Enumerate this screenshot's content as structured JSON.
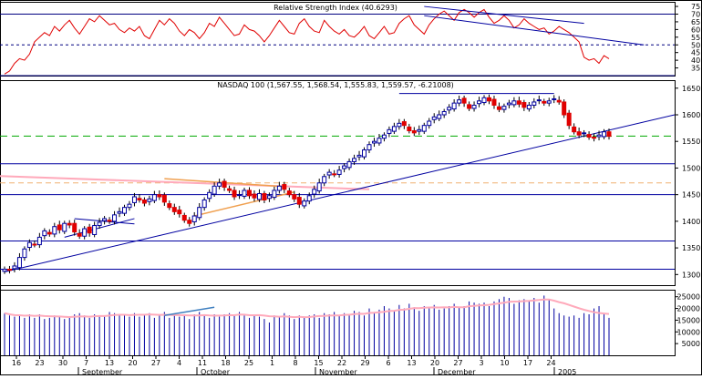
{
  "chart_data": [
    {
      "type": "line",
      "title": "Relative Strength Index (40.6293)",
      "y_ticks": [
        75,
        70,
        65,
        60,
        55,
        50,
        45,
        40,
        35
      ],
      "ylim": [
        30,
        78
      ],
      "reference_lines": [
        70,
        50,
        30
      ],
      "values": [
        31,
        33,
        38,
        41,
        40,
        44,
        52,
        55,
        58,
        56,
        62,
        59,
        63,
        66,
        61,
        57,
        62,
        67,
        65,
        69,
        66,
        63,
        64,
        60,
        58,
        61,
        59,
        62,
        56,
        54,
        60,
        66,
        63,
        67,
        64,
        59,
        56,
        60,
        58,
        54,
        58,
        64,
        62,
        68,
        64,
        60,
        56,
        57,
        63,
        60,
        59,
        56,
        52,
        56,
        61,
        66,
        62,
        58,
        57,
        64,
        67,
        62,
        59,
        58,
        66,
        62,
        59,
        57,
        60,
        56,
        55,
        58,
        62,
        56,
        54,
        58,
        62,
        57,
        58,
        64,
        67,
        69,
        63,
        60,
        57,
        63,
        67,
        70,
        72,
        69,
        66,
        71,
        73,
        71,
        68,
        71,
        73,
        68,
        64,
        66,
        69,
        66,
        61,
        63,
        67,
        64,
        62,
        60,
        61,
        57,
        59,
        62,
        60,
        58,
        55,
        52,
        42,
        40,
        41,
        38,
        43,
        41
      ],
      "trendlines": [
        {
          "x1": 84,
          "y1": 75,
          "x2": 116,
          "y2": 64
        },
        {
          "x1": 84,
          "y1": 69,
          "x2": 128,
          "y2": 50
        }
      ]
    },
    {
      "type": "candlestick",
      "title": "NASDAQ 100 (1,567.55, 1,568.54, 1,555.83, 1,559.57, -6.21008)",
      "y_ticks": [
        1650,
        1600,
        1550,
        1500,
        1450,
        1400,
        1350,
        1300
      ],
      "ylim": [
        1280,
        1665
      ],
      "closes": [
        1310,
        1308,
        1316,
        1332,
        1348,
        1360,
        1356,
        1370,
        1382,
        1376,
        1390,
        1384,
        1396,
        1393,
        1380,
        1372,
        1386,
        1378,
        1392,
        1398,
        1405,
        1400,
        1412,
        1418,
        1426,
        1432,
        1446,
        1440,
        1434,
        1442,
        1450,
        1446,
        1436,
        1426,
        1418,
        1414,
        1402,
        1396,
        1410,
        1426,
        1440,
        1454,
        1466,
        1472,
        1464,
        1458,
        1446,
        1450,
        1458,
        1448,
        1444,
        1452,
        1440,
        1448,
        1458,
        1466,
        1460,
        1450,
        1442,
        1432,
        1438,
        1448,
        1460,
        1472,
        1484,
        1492,
        1488,
        1496,
        1504,
        1512,
        1518,
        1524,
        1534,
        1544,
        1550,
        1556,
        1562,
        1572,
        1578,
        1584,
        1580,
        1570,
        1566,
        1572,
        1580,
        1588,
        1596,
        1600,
        1606,
        1614,
        1622,
        1628,
        1622,
        1612,
        1618,
        1626,
        1632,
        1626,
        1618,
        1610,
        1616,
        1622,
        1626,
        1620,
        1614,
        1618,
        1624,
        1628,
        1622,
        1626,
        1630,
        1624,
        1600,
        1580,
        1568,
        1562,
        1566,
        1558,
        1556,
        1562,
        1568,
        1559.57
      ],
      "horizontal_lines": [
        1640,
        1560,
        1508,
        1472,
        1450,
        1363,
        1310
      ]
    },
    {
      "type": "bar",
      "title": "",
      "y_ticks": [
        25000,
        20000,
        15000,
        10000,
        5000
      ],
      "ylim": [
        0,
        28000
      ],
      "values": [
        18000,
        17000,
        16500,
        17000,
        16000,
        17500,
        16000,
        17500,
        15500,
        16000,
        17000,
        16500,
        15500,
        16000,
        17500,
        18000,
        17000,
        16000,
        17500,
        16500,
        17000,
        18500,
        18000,
        17000,
        17500,
        16500,
        18000,
        16500,
        17500,
        18000,
        16000,
        17500,
        18500,
        16000,
        17000,
        16500,
        17500,
        15500,
        17500,
        18500,
        17000,
        16000,
        17500,
        16500,
        17500,
        18000,
        17000,
        18500,
        17000,
        16000,
        17000,
        16500,
        15500,
        14000,
        17000,
        16500,
        18000,
        17000,
        15500,
        17000,
        16000,
        17000,
        17500,
        16000,
        18000,
        17500,
        18500,
        17000,
        18000,
        17500,
        19000,
        18500,
        17000,
        20000,
        18500,
        19500,
        21000,
        20000,
        19000,
        21500,
        20000,
        22000,
        20500,
        19000,
        21000,
        20000,
        21500,
        19500,
        20000,
        21000,
        22000,
        20500,
        21000,
        23000,
        22500,
        22000,
        22500,
        21000,
        23000,
        24000,
        25000,
        24500,
        22000,
        23500,
        24000,
        23000,
        24500,
        22500,
        25500,
        24000,
        20000,
        18000,
        17000,
        16500,
        17000,
        16000,
        18000,
        17500,
        20000,
        21000,
        17500,
        16000
      ],
      "x_tick_labels": [
        "16",
        "23",
        "30",
        "7",
        "13",
        "20",
        "27",
        "4",
        "11",
        "18",
        "25",
        "1",
        "8",
        "15",
        "22",
        "29",
        "6",
        "13",
        "20",
        "27",
        "3",
        "10",
        "17",
        "24"
      ],
      "month_labels": [
        "September",
        "October",
        "November",
        "December",
        "2005"
      ]
    }
  ]
}
